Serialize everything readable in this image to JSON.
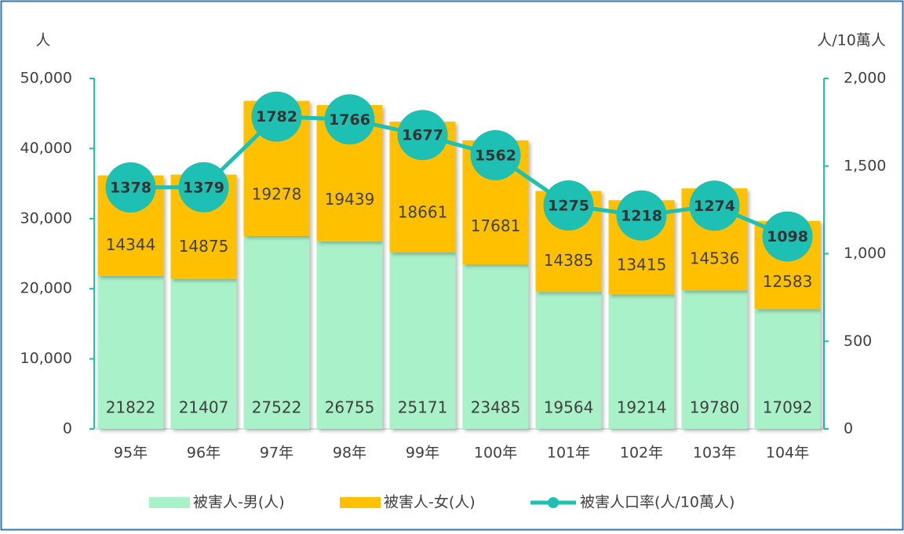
{
  "chart_data": {
    "type": "bar",
    "stacked": true,
    "y_label": "人",
    "y2_label": "人/10萬人",
    "categories": [
      "95年",
      "96年",
      "97年",
      "98年",
      "99年",
      "100年",
      "101年",
      "102年",
      "103年",
      "104年"
    ],
    "series": [
      {
        "name": "被害人-男(人)",
        "color": "#a9f1c8",
        "values": [
          21822,
          21407,
          27522,
          26755,
          25171,
          23485,
          19564,
          19214,
          19780,
          17092
        ]
      },
      {
        "name": "被害人-女(人)",
        "color": "#ffc000",
        "values": [
          14344,
          14875,
          19278,
          19439,
          18661,
          17681,
          14385,
          13415,
          14536,
          12583
        ]
      },
      {
        "name": "被害人口率(人/10萬人)",
        "type": "line",
        "axis": "y2",
        "color": "#1ec0b4",
        "values": [
          1378,
          1379,
          1782,
          1766,
          1677,
          1562,
          1275,
          1218,
          1274,
          1098
        ]
      }
    ],
    "ylim": [
      0,
      50000
    ],
    "yticks": [
      0,
      {
        "value": 10000,
        "label": "10,000"
      },
      {
        "value": 20000,
        "label": "20,000"
      },
      {
        "value": 30000,
        "label": "30,000"
      },
      {
        "value": 40000,
        "label": "40,000"
      },
      {
        "value": 50000,
        "label": "50,000"
      }
    ],
    "y2lim": [
      0,
      2000
    ],
    "y2ticks": [
      0,
      500,
      {
        "value": 1000,
        "label": "1,000"
      },
      {
        "value": 1500,
        "label": "1,500"
      },
      {
        "value": 2000,
        "label": "2,000"
      }
    ],
    "legend": "bottom"
  }
}
